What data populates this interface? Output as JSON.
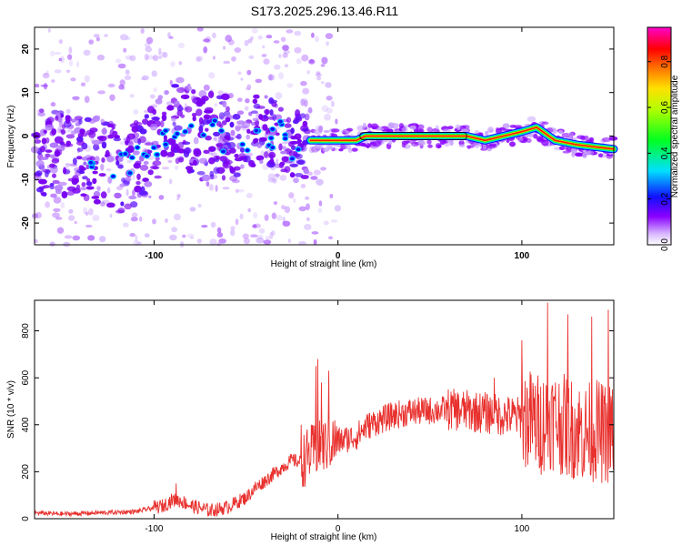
{
  "title": "S173.2025.296.13.46.R11",
  "chart_data": [
    {
      "type": "heatmap",
      "xlabel": "Height of straight line (km)",
      "ylabel": "Frequency (Hz)",
      "xlim": [
        -165,
        150
      ],
      "ylim": [
        -25,
        25
      ],
      "xticks": [
        -100,
        0,
        100
      ],
      "xtick_labels": [
        "-100",
        "0",
        "100"
      ],
      "yticks": [
        -20,
        -10,
        0,
        10,
        20
      ],
      "ytick_labels": [
        "-20",
        "-10",
        "0",
        "10",
        "20"
      ],
      "colorbar": {
        "label": "Normalized spectral amplitude",
        "range": [
          0,
          0.95
        ],
        "ticks": [
          0.0,
          0.2,
          0.4,
          0.6,
          0.8
        ],
        "tick_labels": [
          "0.0",
          "0.2",
          "0.4",
          "0.6",
          "0.8"
        ]
      },
      "ridge": [
        {
          "x": -165,
          "y": -3
        },
        {
          "x": -130,
          "y": -6
        },
        {
          "x": -115,
          "y": -8
        },
        {
          "x": -100,
          "y": -3
        },
        {
          "x": -90,
          "y": 4
        },
        {
          "x": -75,
          "y": 0
        },
        {
          "x": -55,
          "y": -1
        },
        {
          "x": -40,
          "y": 2
        },
        {
          "x": -20,
          "y": -3
        },
        {
          "x": -15,
          "y": -1
        },
        {
          "x": 0,
          "y": -1
        },
        {
          "x": 10,
          "y": -1
        },
        {
          "x": 15,
          "y": 0
        },
        {
          "x": 70,
          "y": 0
        },
        {
          "x": 80,
          "y": -1
        },
        {
          "x": 100,
          "y": 1
        },
        {
          "x": 108,
          "y": 2
        },
        {
          "x": 118,
          "y": -1
        },
        {
          "x": 130,
          "y": -2
        },
        {
          "x": 150,
          "y": -3
        }
      ]
    },
    {
      "type": "line",
      "xlabel": "Height of straight line (km)",
      "ylabel": "SNR (10 * v/v)",
      "xlim": [
        -165,
        150
      ],
      "ylim": [
        0,
        930
      ],
      "xticks": [
        -100,
        0,
        100
      ],
      "xtick_labels": [
        "-100",
        "0",
        "100"
      ],
      "yticks": [
        0,
        200,
        400,
        600,
        800
      ],
      "ytick_labels": [
        "0",
        "200",
        "400",
        "600",
        "800"
      ],
      "series": [
        {
          "name": "SNR",
          "color": "#e8312e",
          "x": [
            -165,
            -150,
            -130,
            -110,
            -95,
            -90,
            -85,
            -80,
            -75,
            -70,
            -65,
            -60,
            -55,
            -50,
            -45,
            -40,
            -35,
            -30,
            -25,
            -20,
            -15,
            -10,
            -5,
            0,
            5,
            10,
            15,
            20,
            30,
            40,
            50,
            60,
            70,
            80,
            90,
            100,
            105,
            110,
            115,
            120,
            125,
            130,
            135,
            140,
            145,
            150
          ],
          "values": [
            25,
            20,
            25,
            30,
            55,
            80,
            75,
            55,
            45,
            35,
            40,
            50,
            70,
            90,
            130,
            160,
            190,
            220,
            250,
            240,
            280,
            300,
            320,
            330,
            340,
            350,
            390,
            410,
            440,
            455,
            460,
            465,
            460,
            450,
            440,
            430,
            420,
            400,
            430,
            410,
            390,
            380,
            360,
            380,
            360,
            370
          ],
          "spikes": [
            {
              "x": -88,
              "y": 150
            },
            {
              "x": -20,
              "y": 400
            },
            {
              "x": -12,
              "y": 650
            },
            {
              "x": -11,
              "y": 680
            },
            {
              "x": -9,
              "y": 580
            },
            {
              "x": -5,
              "y": 630
            },
            {
              "x": 85,
              "y": 600
            },
            {
              "x": 100,
              "y": 760
            },
            {
              "x": 114,
              "y": 920
            },
            {
              "x": 125,
              "y": 870
            },
            {
              "x": 138,
              "y": 860
            },
            {
              "x": 147,
              "y": 890
            }
          ]
        }
      ]
    }
  ]
}
